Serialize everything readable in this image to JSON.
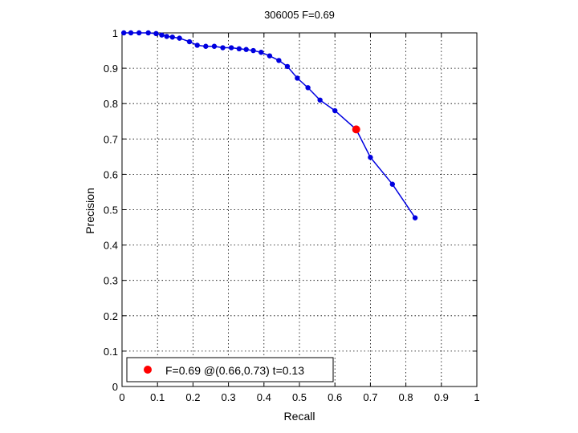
{
  "chart_data": {
    "type": "line",
    "title": "306005 F=0.69",
    "xlabel": "Recall",
    "ylabel": "Precision",
    "xlim": [
      0,
      1
    ],
    "ylim": [
      0,
      1
    ],
    "xticks": [
      "0",
      "0.1",
      "0.2",
      "0.3",
      "0.4",
      "0.5",
      "0.6",
      "0.7",
      "0.8",
      "0.9",
      "1"
    ],
    "yticks": [
      "0",
      "0.1",
      "0.2",
      "0.3",
      "0.4",
      "0.5",
      "0.6",
      "0.7",
      "0.8",
      "0.9",
      "1"
    ],
    "grid": true,
    "legend_position": "bottom-left",
    "series": [
      {
        "color": "#0000e0",
        "x": [
          0.005,
          0.025,
          0.048,
          0.074,
          0.096,
          0.112,
          0.126,
          0.142,
          0.162,
          0.19,
          0.212,
          0.236,
          0.26,
          0.284,
          0.308,
          0.33,
          0.35,
          0.37,
          0.392,
          0.416,
          0.442,
          0.466,
          0.494,
          0.524,
          0.558,
          0.6,
          0.66,
          0.7,
          0.762,
          0.826
        ],
        "y": [
          1.0,
          1.0,
          1.0,
          1.0,
          0.998,
          0.994,
          0.99,
          0.988,
          0.985,
          0.975,
          0.965,
          0.962,
          0.962,
          0.958,
          0.958,
          0.955,
          0.953,
          0.95,
          0.945,
          0.935,
          0.922,
          0.905,
          0.872,
          0.845,
          0.81,
          0.78,
          0.727,
          0.648,
          0.572,
          0.477
        ]
      }
    ],
    "highlight": {
      "label": "F=0.69 @(0.66,0.73) t=0.13",
      "x": 0.66,
      "y": 0.727,
      "color": "#ff0000"
    }
  }
}
